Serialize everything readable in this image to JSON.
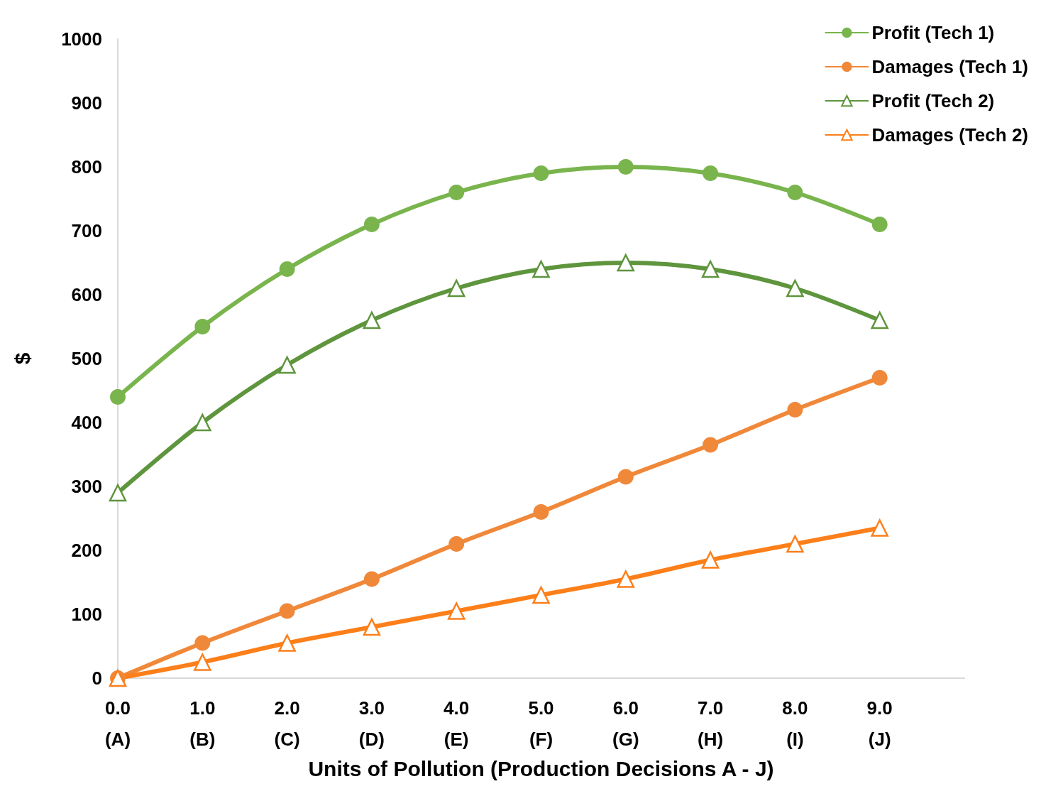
{
  "chart_data": {
    "type": "line",
    "xlabel": "Units of Pollution (Production Decisions A - J)",
    "ylabel": "$",
    "x": [
      0,
      1,
      2,
      3,
      4,
      5,
      6,
      7,
      8,
      9
    ],
    "xlim": [
      0,
      10
    ],
    "xticks": [
      {
        "value": 0,
        "label": "0.0\n(A)"
      },
      {
        "value": 1,
        "label": "1.0\n(B)"
      },
      {
        "value": 2,
        "label": "2.0\n(C)"
      },
      {
        "value": 3,
        "label": "3.0\n(D)"
      },
      {
        "value": 4,
        "label": "4.0\n(E)"
      },
      {
        "value": 5,
        "label": "5.0\n(F)"
      },
      {
        "value": 6,
        "label": "6.0\n(G)"
      },
      {
        "value": 7,
        "label": "7.0\n(H)"
      },
      {
        "value": 8,
        "label": "8.0\n(I)"
      },
      {
        "value": 9,
        "label": "9.0\n(J)"
      }
    ],
    "ylim": [
      0,
      1000
    ],
    "yticks": [
      0,
      100,
      200,
      300,
      400,
      500,
      600,
      700,
      800,
      900,
      1000
    ],
    "grid": false,
    "legend": "top right",
    "series": [
      {
        "name": "Profit (Tech 1)",
        "color": "#79b44d",
        "marker": "circle",
        "values": [
          440,
          550,
          640,
          710,
          760,
          790,
          800,
          790,
          760,
          710
        ]
      },
      {
        "name": "Damages (Tech 1)",
        "color": "#f0883a",
        "marker": "circle",
        "values": [
          0,
          55,
          105,
          155,
          210,
          260,
          315,
          365,
          420,
          470
        ]
      },
      {
        "name": "Profit (Tech 2)",
        "color": "#5e953d",
        "marker": "triangle",
        "values": [
          290,
          400,
          490,
          560,
          610,
          640,
          650,
          640,
          610,
          560
        ]
      },
      {
        "name": "Damages (Tech 2)",
        "color": "#fc7f1a",
        "marker": "triangle",
        "values": [
          0,
          25,
          55,
          80,
          105,
          130,
          155,
          185,
          210,
          235
        ]
      }
    ]
  }
}
